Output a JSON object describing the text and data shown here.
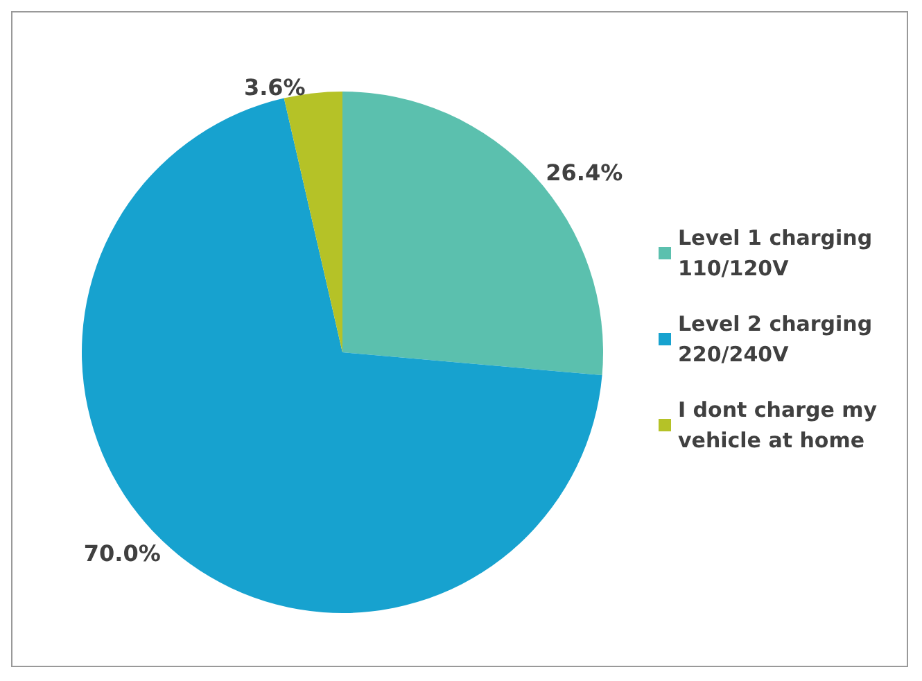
{
  "chart_data": {
    "type": "pie",
    "categories": [
      "Level 1 charging 110/120V",
      "Level 2 charging 220/240V",
      "I dont charge my vehicle at home"
    ],
    "values": [
      26.4,
      70.0,
      3.6
    ],
    "colors": [
      "#5bc0ae",
      "#17a2cf",
      "#b5c227"
    ],
    "value_labels": [
      "26.4%",
      "70.0%",
      "3.6%"
    ],
    "legend": "right"
  }
}
